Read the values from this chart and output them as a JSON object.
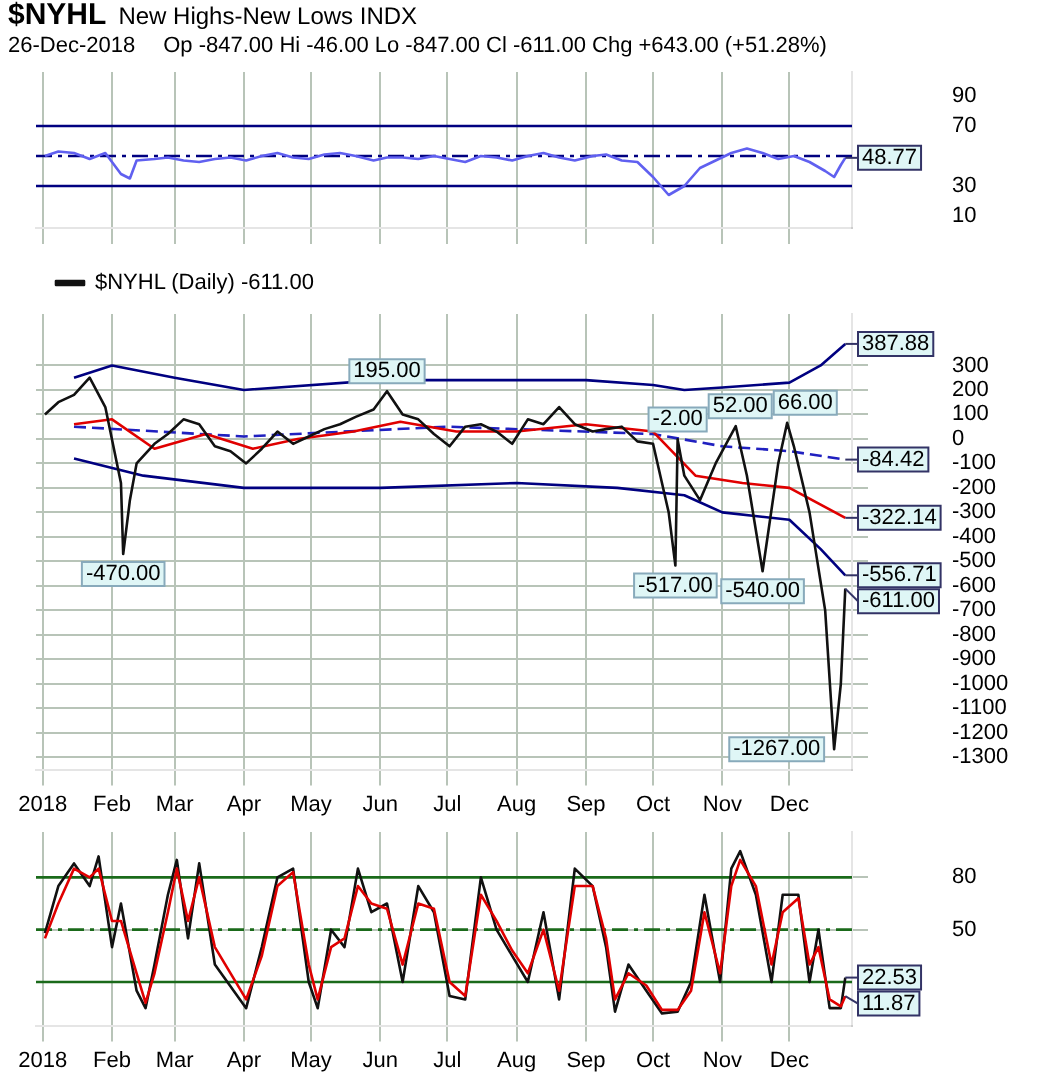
{
  "chart_data": [
    {
      "type": "line",
      "title": "$NYHL",
      "subtitle": "New Highs-New Lows INDX",
      "annotations": [
        "26-Dec-2018",
        "Op -847.00 Hi -46.00 Lo -847.00 Cl -611.00 Chg +643.00 (+51.28%)",
        {
          "text": "48.77",
          "x": "2018-12-26",
          "y": 48.77
        }
      ],
      "xlim": [
        "2017-12-29",
        "2018-12-29"
      ],
      "xticks": [
        {
          "value": "2018-01-01",
          "label": null
        },
        {
          "value": "2018-02-01",
          "label": null
        },
        {
          "value": "2018-03-01",
          "label": null
        },
        {
          "value": "2018-04-01",
          "label": null
        },
        {
          "value": "2018-05-01",
          "label": null
        },
        {
          "value": "2018-06-01",
          "label": null
        },
        {
          "value": "2018-07-01",
          "label": null
        },
        {
          "value": "2018-08-01",
          "label": null
        },
        {
          "value": "2018-09-01",
          "label": null
        },
        {
          "value": "2018-10-01",
          "label": null
        },
        {
          "value": "2018-11-01",
          "label": null
        },
        {
          "value": "2018-12-01",
          "label": null
        }
      ],
      "ylim": [
        2,
        106
      ],
      "yticks": [
        90,
        70,
        30,
        10
      ],
      "grid": "x",
      "tick_labels": "y",
      "marker": "none",
      "ref_lines": [
        {
          "axis": "y",
          "value": 70,
          "color": "#000080",
          "line_style": "solid"
        },
        {
          "axis": "y",
          "value": 30,
          "color": "#000080",
          "line_style": "solid"
        },
        {
          "axis": "y",
          "value": 50,
          "color": "#000080",
          "line_style": "dashed"
        }
      ],
      "series": [
        {
          "color": "#6060f0",
          "x": [
            "2018-01-02",
            "2018-01-08",
            "2018-01-15",
            "2018-01-22",
            "2018-01-29",
            "2018-02-05",
            "2018-02-09",
            "2018-02-12",
            "2018-02-20",
            "2018-02-26",
            "2018-03-05",
            "2018-03-12",
            "2018-03-19",
            "2018-03-26",
            "2018-04-02",
            "2018-04-09",
            "2018-04-16",
            "2018-04-23",
            "2018-04-30",
            "2018-05-07",
            "2018-05-14",
            "2018-05-21",
            "2018-05-29",
            "2018-06-04",
            "2018-06-11",
            "2018-06-18",
            "2018-06-25",
            "2018-07-02",
            "2018-07-09",
            "2018-07-16",
            "2018-07-23",
            "2018-07-30",
            "2018-08-06",
            "2018-08-13",
            "2018-08-20",
            "2018-08-27",
            "2018-09-04",
            "2018-09-10",
            "2018-09-17",
            "2018-09-24",
            "2018-10-01",
            "2018-10-08",
            "2018-10-15",
            "2018-10-22",
            "2018-10-29",
            "2018-11-05",
            "2018-11-12",
            "2018-11-19",
            "2018-11-26",
            "2018-12-03",
            "2018-12-10",
            "2018-12-17",
            "2018-12-21",
            "2018-12-24",
            "2018-12-26"
          ],
          "values": [
            50,
            53,
            52,
            48,
            52,
            38,
            35,
            47,
            48,
            49,
            47,
            46,
            48,
            49,
            47,
            50,
            52,
            49,
            48,
            51,
            52,
            50,
            47,
            49,
            49,
            48,
            50,
            48,
            46,
            50,
            49,
            47,
            50,
            52,
            49,
            47,
            50,
            51,
            47,
            46,
            36,
            24,
            30,
            42,
            47,
            52,
            55,
            52,
            48,
            50,
            46,
            40,
            36,
            44,
            48.77
          ]
        }
      ]
    },
    {
      "type": "line",
      "annotations": [
        {
          "text": "-470.00",
          "x": "2018-02-06",
          "y": -470
        },
        {
          "text": "195.00",
          "x": "2018-06-04",
          "y": 195
        },
        {
          "text": "-2.00",
          "x": "2018-10-12",
          "y": -2
        },
        {
          "text": "-517.00",
          "x": "2018-10-11",
          "y": -517
        },
        {
          "text": "52.00",
          "x": "2018-11-07",
          "y": 52
        },
        {
          "text": "66.00",
          "x": "2018-11-30",
          "y": 66
        },
        {
          "text": "-540.00",
          "x": "2018-11-19",
          "y": -540
        },
        {
          "text": "-1267.00",
          "x": "2018-12-21",
          "y": -1267
        },
        {
          "text": "387.88",
          "x": "2018-12-26",
          "y": 387.88
        },
        {
          "text": "-84.42",
          "x": "2018-12-26",
          "y": -84.42
        },
        {
          "text": "-322.14",
          "x": "2018-12-26",
          "y": -322.14
        },
        {
          "text": "-556.71",
          "x": "2018-12-26",
          "y": -556.71
        },
        {
          "text": "-611.00",
          "x": "2018-12-26",
          "y": -611
        }
      ],
      "xlim": [
        "2017-12-29",
        "2018-12-29"
      ],
      "xticks": [
        {
          "value": "2018-01-01",
          "label": "2018"
        },
        {
          "value": "2018-02-01",
          "label": "Feb"
        },
        {
          "value": "2018-03-01",
          "label": "Mar"
        },
        {
          "value": "2018-04-01",
          "label": "Apr"
        },
        {
          "value": "2018-05-01",
          "label": "May"
        },
        {
          "value": "2018-06-01",
          "label": "Jun"
        },
        {
          "value": "2018-07-01",
          "label": "Jul"
        },
        {
          "value": "2018-08-01",
          "label": "Aug"
        },
        {
          "value": "2018-09-01",
          "label": "Sep"
        },
        {
          "value": "2018-10-01",
          "label": "Oct"
        },
        {
          "value": "2018-11-01",
          "label": "Nov"
        },
        {
          "value": "2018-12-01",
          "label": "Dec"
        }
      ],
      "ylim": [
        -1350,
        510
      ],
      "yticks": [
        300,
        200,
        100,
        0,
        -100,
        -200,
        -300,
        -400,
        -500,
        -600,
        -700,
        -800,
        -900,
        -1000,
        -1100,
        -1200,
        -1300
      ],
      "grid": true,
      "legend": "top left",
      "marker": "none",
      "series": [
        {
          "name": "$NYHL (Daily) -611.00",
          "color": "#111111",
          "x": [
            "2018-01-02",
            "2018-01-08",
            "2018-01-15",
            "2018-01-22",
            "2018-01-29",
            "2018-02-05",
            "2018-02-06",
            "2018-02-09",
            "2018-02-12",
            "2018-02-20",
            "2018-02-26",
            "2018-03-05",
            "2018-03-12",
            "2018-03-19",
            "2018-03-26",
            "2018-04-02",
            "2018-04-09",
            "2018-04-16",
            "2018-04-23",
            "2018-04-30",
            "2018-05-07",
            "2018-05-14",
            "2018-05-21",
            "2018-05-29",
            "2018-06-04",
            "2018-06-11",
            "2018-06-18",
            "2018-06-25",
            "2018-07-02",
            "2018-07-09",
            "2018-07-16",
            "2018-07-23",
            "2018-07-30",
            "2018-08-06",
            "2018-08-13",
            "2018-08-20",
            "2018-08-27",
            "2018-09-04",
            "2018-09-10",
            "2018-09-17",
            "2018-09-24",
            "2018-10-01",
            "2018-10-08",
            "2018-10-11",
            "2018-10-12",
            "2018-10-15",
            "2018-10-22",
            "2018-10-29",
            "2018-11-07",
            "2018-11-12",
            "2018-11-19",
            "2018-11-26",
            "2018-11-30",
            "2018-12-03",
            "2018-12-10",
            "2018-12-17",
            "2018-12-21",
            "2018-12-24",
            "2018-12-26"
          ],
          "values": [
            100,
            150,
            180,
            250,
            130,
            -180,
            -470,
            -250,
            -100,
            -20,
            20,
            80,
            60,
            -30,
            -50,
            -100,
            -40,
            30,
            -20,
            10,
            40,
            60,
            90,
            120,
            195,
            100,
            80,
            20,
            -30,
            50,
            60,
            30,
            -20,
            80,
            60,
            130,
            60,
            30,
            40,
            50,
            -10,
            -20,
            -300,
            -517,
            -2,
            -150,
            -250,
            -100,
            52,
            -150,
            -540,
            -100,
            66,
            -30,
            -300,
            -700,
            -1267,
            -1000,
            -611
          ]
        },
        {
          "color": "#e00000",
          "x": [
            "2018-01-15",
            "2018-02-01",
            "2018-02-20",
            "2018-03-15",
            "2018-04-05",
            "2018-04-25",
            "2018-05-20",
            "2018-06-10",
            "2018-07-05",
            "2018-08-01",
            "2018-09-01",
            "2018-10-01",
            "2018-10-20",
            "2018-11-10",
            "2018-12-01",
            "2018-12-26"
          ],
          "values": [
            60,
            80,
            -40,
            20,
            -40,
            0,
            30,
            70,
            30,
            30,
            60,
            30,
            -150,
            -180,
            -200,
            -322.14
          ]
        },
        {
          "color": "#000080",
          "x": [
            "2018-01-15",
            "2018-02-01",
            "2018-03-01",
            "2018-04-01",
            "2018-06-01",
            "2018-08-01",
            "2018-09-01",
            "2018-10-01",
            "2018-10-15",
            "2018-11-01",
            "2018-12-01",
            "2018-12-15",
            "2018-12-26"
          ],
          "values": [
            250,
            300,
            250,
            200,
            240,
            240,
            240,
            220,
            200,
            210,
            230,
            300,
            387.88
          ]
        },
        {
          "color": "#000080",
          "x": [
            "2018-01-15",
            "2018-02-15",
            "2018-04-01",
            "2018-06-01",
            "2018-08-01",
            "2018-09-15",
            "2018-10-15",
            "2018-11-01",
            "2018-12-01",
            "2018-12-15",
            "2018-12-26"
          ],
          "values": [
            -80,
            -150,
            -200,
            -200,
            -180,
            -200,
            -230,
            -300,
            -330,
            -450,
            -556.71
          ]
        },
        {
          "color": "#2020c0",
          "line_style": "dashed",
          "x": [
            "2018-01-15",
            "2018-04-01",
            "2018-07-01",
            "2018-10-01",
            "2018-11-01",
            "2018-12-01",
            "2018-12-26"
          ],
          "values": [
            50,
            10,
            50,
            20,
            -30,
            -50,
            -84.42
          ]
        }
      ]
    },
    {
      "type": "line",
      "annotations": [
        {
          "text": "22.53",
          "x": "2018-12-26",
          "y": 22.53
        },
        {
          "text": "11.87",
          "x": "2018-12-26",
          "y": 11.87
        }
      ],
      "xlim": [
        "2017-12-29",
        "2018-12-29"
      ],
      "xticks": [
        {
          "value": "2018-01-01",
          "label": "2018"
        },
        {
          "value": "2018-02-01",
          "label": "Feb"
        },
        {
          "value": "2018-03-01",
          "label": "Mar"
        },
        {
          "value": "2018-04-01",
          "label": "Apr"
        },
        {
          "value": "2018-05-01",
          "label": "May"
        },
        {
          "value": "2018-06-01",
          "label": "Jun"
        },
        {
          "value": "2018-07-01",
          "label": "Jul"
        },
        {
          "value": "2018-08-01",
          "label": "Aug"
        },
        {
          "value": "2018-09-01",
          "label": "Sep"
        },
        {
          "value": "2018-10-01",
          "label": "Oct"
        },
        {
          "value": "2018-11-01",
          "label": "Nov"
        },
        {
          "value": "2018-12-01",
          "label": "Dec"
        }
      ],
      "ylim": [
        -5,
        106
      ],
      "yticks": [
        80,
        50
      ],
      "grid": true,
      "marker": "none",
      "ref_lines": [
        {
          "axis": "y",
          "value": 80,
          "color": "#1a6a1a",
          "line_style": "solid"
        },
        {
          "axis": "y",
          "value": 20,
          "color": "#1a6a1a",
          "line_style": "solid"
        },
        {
          "axis": "y",
          "value": 50,
          "color": "#1a6a1a",
          "line_style": "dashed"
        }
      ],
      "series": [
        {
          "color": "#e00000",
          "x": [
            "2018-01-02",
            "2018-01-08",
            "2018-01-15",
            "2018-01-22",
            "2018-01-26",
            "2018-02-01",
            "2018-02-05",
            "2018-02-12",
            "2018-02-16",
            "2018-02-20",
            "2018-02-26",
            "2018-03-02",
            "2018-03-07",
            "2018-03-12",
            "2018-03-19",
            "2018-04-02",
            "2018-04-09",
            "2018-04-16",
            "2018-04-23",
            "2018-04-30",
            "2018-05-04",
            "2018-05-10",
            "2018-05-16",
            "2018-05-22",
            "2018-05-28",
            "2018-06-04",
            "2018-06-11",
            "2018-06-18",
            "2018-06-25",
            "2018-07-02",
            "2018-07-09",
            "2018-07-16",
            "2018-07-23",
            "2018-07-30",
            "2018-08-06",
            "2018-08-13",
            "2018-08-20",
            "2018-08-27",
            "2018-09-04",
            "2018-09-10",
            "2018-09-14",
            "2018-09-20",
            "2018-09-28",
            "2018-10-05",
            "2018-10-12",
            "2018-10-18",
            "2018-10-24",
            "2018-10-31",
            "2018-11-05",
            "2018-11-09",
            "2018-11-16",
            "2018-11-23",
            "2018-11-28",
            "2018-12-05",
            "2018-12-10",
            "2018-12-14",
            "2018-12-19",
            "2018-12-24",
            "2018-12-26"
          ],
          "values": [
            45,
            65,
            85,
            80,
            85,
            55,
            55,
            25,
            8,
            25,
            60,
            85,
            55,
            80,
            40,
            10,
            35,
            75,
            83,
            30,
            10,
            40,
            45,
            75,
            65,
            62,
            30,
            65,
            62,
            20,
            12,
            70,
            55,
            38,
            25,
            50,
            15,
            75,
            75,
            45,
            10,
            25,
            18,
            4,
            4,
            15,
            60,
            25,
            75,
            90,
            75,
            30,
            60,
            68,
            30,
            40,
            10,
            6,
            11.87
          ]
        },
        {
          "color": "#111111",
          "x": [
            "2018-01-02",
            "2018-01-08",
            "2018-01-15",
            "2018-01-22",
            "2018-01-26",
            "2018-02-01",
            "2018-02-05",
            "2018-02-12",
            "2018-02-16",
            "2018-02-20",
            "2018-02-26",
            "2018-03-02",
            "2018-03-07",
            "2018-03-12",
            "2018-03-19",
            "2018-04-02",
            "2018-04-09",
            "2018-04-16",
            "2018-04-23",
            "2018-04-30",
            "2018-05-04",
            "2018-05-10",
            "2018-05-16",
            "2018-05-22",
            "2018-05-28",
            "2018-06-04",
            "2018-06-11",
            "2018-06-18",
            "2018-06-25",
            "2018-07-02",
            "2018-07-09",
            "2018-07-16",
            "2018-07-23",
            "2018-07-30",
            "2018-08-06",
            "2018-08-13",
            "2018-08-20",
            "2018-08-27",
            "2018-09-04",
            "2018-09-10",
            "2018-09-14",
            "2018-09-20",
            "2018-09-28",
            "2018-10-05",
            "2018-10-12",
            "2018-10-18",
            "2018-10-24",
            "2018-10-31",
            "2018-11-05",
            "2018-11-09",
            "2018-11-16",
            "2018-11-23",
            "2018-11-28",
            "2018-12-05",
            "2018-12-10",
            "2018-12-14",
            "2018-12-19",
            "2018-12-24",
            "2018-12-26"
          ],
          "values": [
            48,
            75,
            88,
            75,
            92,
            40,
            65,
            15,
            5,
            30,
            70,
            90,
            45,
            88,
            30,
            5,
            40,
            80,
            85,
            20,
            5,
            50,
            40,
            85,
            60,
            65,
            20,
            75,
            60,
            12,
            10,
            80,
            50,
            35,
            20,
            60,
            10,
            85,
            75,
            40,
            3,
            30,
            15,
            2,
            3,
            20,
            70,
            20,
            85,
            95,
            70,
            20,
            70,
            70,
            20,
            50,
            5,
            5,
            22.53
          ]
        }
      ]
    }
  ]
}
